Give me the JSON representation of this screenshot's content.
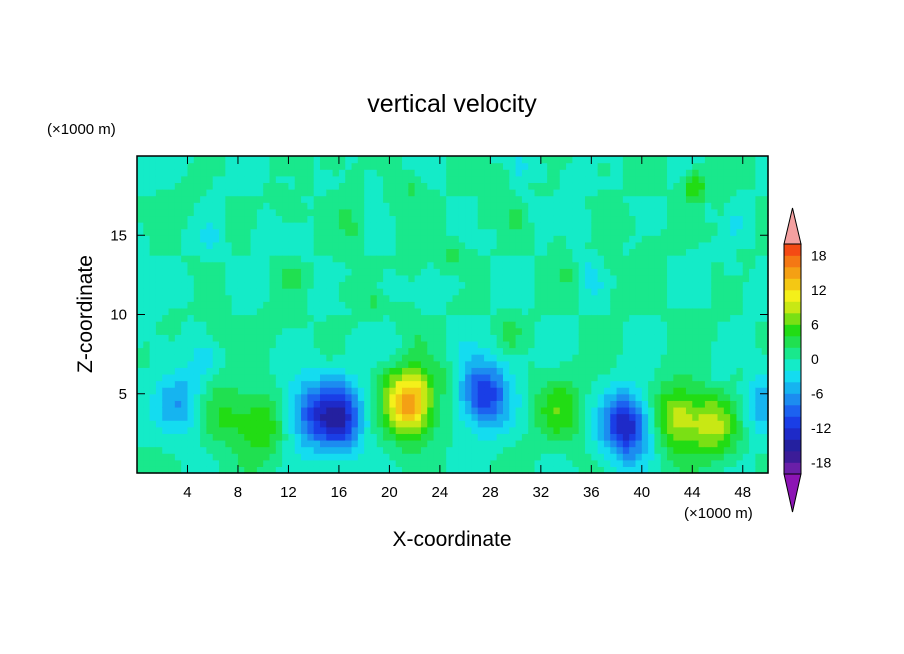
{
  "chart_data": {
    "type": "heatmap",
    "title": "vertical velocity",
    "xlabel": "X-coordinate",
    "ylabel": "Z-coordinate",
    "x_unit": "(×1000 m)",
    "z_unit": "(×1000 m)",
    "xlim": [
      0,
      50
    ],
    "zlim": [
      0,
      20
    ],
    "x_ticks": [
      4,
      8,
      12,
      16,
      20,
      24,
      28,
      32,
      36,
      40,
      44,
      48
    ],
    "z_ticks": [
      5,
      10,
      15
    ],
    "colorbar": {
      "levels": [
        -20,
        -18,
        -16,
        -14,
        -12,
        -10,
        -8,
        -6,
        -4,
        -2,
        0,
        2,
        4,
        6,
        8,
        10,
        12,
        14,
        16,
        18,
        20
      ],
      "tick_labels": [
        -18,
        -12,
        -6,
        0,
        6,
        12,
        18
      ],
      "colors": [
        "#6a1fa8",
        "#3c1c98",
        "#24209f",
        "#1e2ac8",
        "#1a3ee6",
        "#1c62f0",
        "#1c8cf0",
        "#16b4f0",
        "#14dcf0",
        "#14ebc8",
        "#19e88c",
        "#20e050",
        "#22dc14",
        "#7ae014",
        "#c8e814",
        "#f4f01a",
        "#f4c814",
        "#f4a014",
        "#f47814",
        "#f44a14"
      ],
      "under_color": "#8c14b4",
      "over_color": "#f4a0a0"
    },
    "features": [
      {
        "x": 3.5,
        "z": 4.5,
        "w": -6
      },
      {
        "x": 6.8,
        "z": 3.8,
        "w": 4
      },
      {
        "x": 9.8,
        "z": 3.0,
        "w": 6
      },
      {
        "x": 13.5,
        "z": 3.8,
        "w": -8
      },
      {
        "x": 16.0,
        "z": 3.5,
        "w": -13
      },
      {
        "x": 21.6,
        "z": 4.5,
        "w": 16
      },
      {
        "x": 27.5,
        "z": 5.0,
        "w": -12
      },
      {
        "x": 33.5,
        "z": 4.0,
        "w": 5
      },
      {
        "x": 38.8,
        "z": 3.0,
        "w": -14
      },
      {
        "x": 42.8,
        "z": 3.5,
        "w": 9
      },
      {
        "x": 45.8,
        "z": 3.0,
        "w": 8
      },
      {
        "x": 49.5,
        "z": 4.5,
        "w": -5
      }
    ]
  }
}
